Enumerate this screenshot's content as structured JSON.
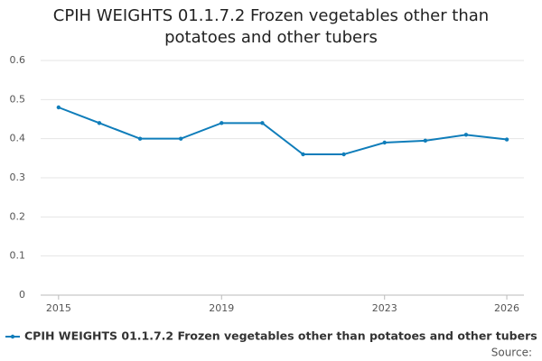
{
  "chart_data": {
    "type": "line",
    "title": "CPIH WEIGHTS 01.1.7.2 Frozen vegetables other than potatoes and other tubers",
    "x": [
      2015,
      2016,
      2017,
      2018,
      2019,
      2020,
      2021,
      2022,
      2023,
      2024,
      2025,
      2026
    ],
    "series": [
      {
        "name": "CPIH WEIGHTS 01.1.7.2 Frozen vegetables other than potatoes and other tubers",
        "color": "#0f7dba",
        "values": [
          0.48,
          0.44,
          0.4,
          0.4,
          0.44,
          0.44,
          0.36,
          0.36,
          0.39,
          0.395,
          0.41,
          0.398
        ]
      }
    ],
    "xlim": [
      2014.56,
      2026.42
    ],
    "xticks": [
      2015,
      2019,
      2023,
      2026
    ],
    "ylim": [
      0,
      0.6
    ],
    "yticks": [
      0,
      0.1,
      0.2,
      0.3,
      0.4,
      0.5,
      0.6
    ],
    "grid": true,
    "legend": "bottom",
    "source": "Source:"
  }
}
